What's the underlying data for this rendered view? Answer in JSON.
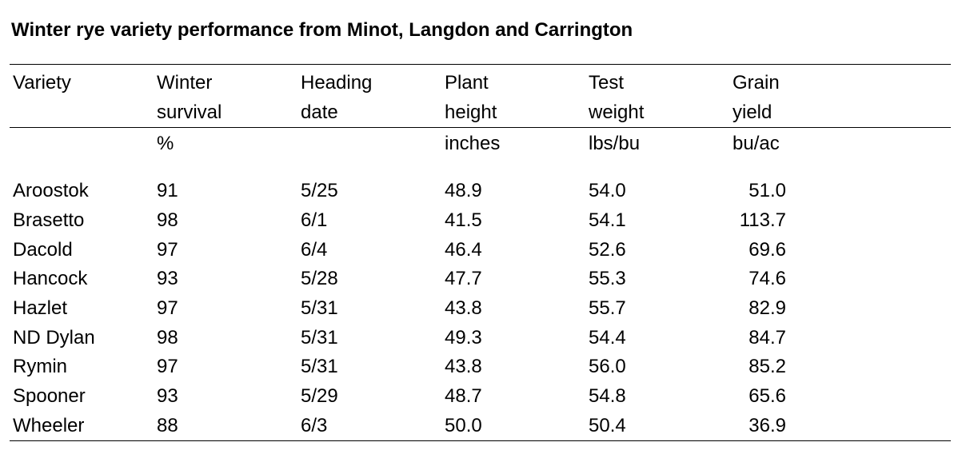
{
  "title": "Winter rye variety performance from Minot, Langdon and Carrington",
  "header": {
    "row1": [
      "Variety",
      "Winter",
      "Heading",
      "Plant",
      "Test",
      "Grain"
    ],
    "row2": [
      "",
      "survival",
      "date",
      "height",
      "weight",
      "yield"
    ],
    "units": [
      "",
      "%",
      "",
      "inches",
      "lbs/bu",
      "bu/ac"
    ]
  },
  "rows": [
    [
      "Aroostok",
      "91",
      "5/25",
      "48.9",
      "54.0",
      "51.0"
    ],
    [
      "Brasetto",
      "98",
      "6/1",
      "41.5",
      "54.1",
      "113.7"
    ],
    [
      "Dacold",
      "97",
      "6/4",
      "46.4",
      "52.6",
      "69.6"
    ],
    [
      "Hancock",
      "93",
      "5/28",
      "47.7",
      "55.3",
      "74.6"
    ],
    [
      "Hazlet",
      "97",
      "5/31",
      "43.8",
      "55.7",
      "82.9"
    ],
    [
      "ND Dylan",
      "98",
      "5/31",
      "49.3",
      "54.4",
      "84.7"
    ],
    [
      "Rymin",
      "97",
      "5/31",
      "43.8",
      "56.0",
      "85.2"
    ],
    [
      "Spooner",
      "93",
      "5/29",
      "48.7",
      "54.8",
      "65.6"
    ],
    [
      "Wheeler",
      "88",
      "6/3",
      "50.0",
      "50.4",
      "36.9"
    ]
  ]
}
